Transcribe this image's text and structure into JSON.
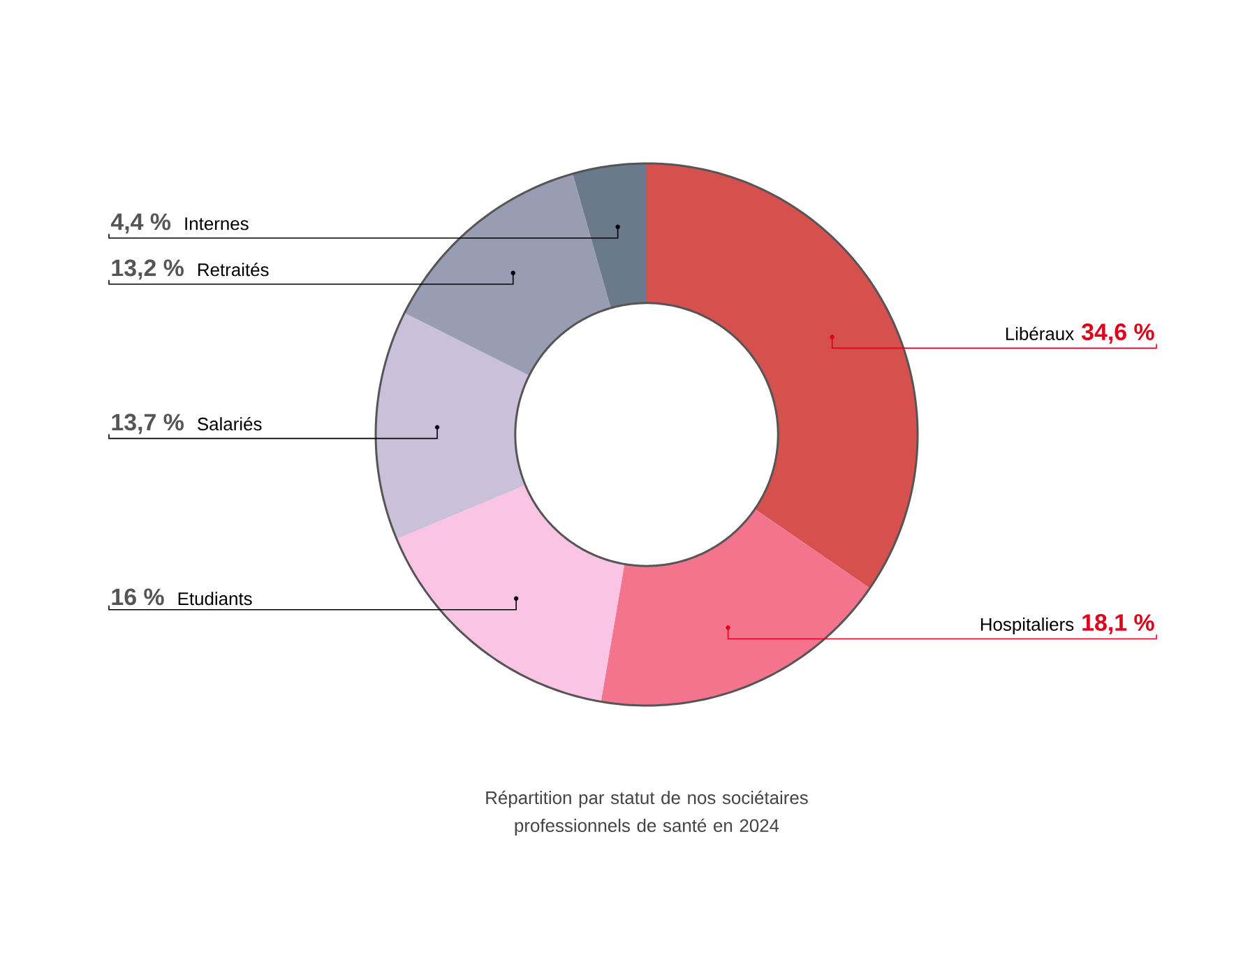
{
  "chart_data": {
    "type": "donut",
    "title": "Répartition par statut de nos sociétaires professionnels de santé en 2024",
    "categories": [
      "Libéraux",
      "Hospitaliers",
      "Etudiants",
      "Salariés",
      "Retraités",
      "Internes"
    ],
    "values": [
      34.6,
      18.1,
      16,
      13.7,
      13.2,
      4.4
    ],
    "value_labels": [
      "34,6 %",
      "18,1 %",
      "16 %",
      "13,7 %",
      "13,2 %",
      "4,4 %"
    ],
    "colors": [
      "#d6504d",
      "#f4748d",
      "#fbc3e4",
      "#cbc0da",
      "#989db3",
      "#6a7a8c"
    ]
  }
}
